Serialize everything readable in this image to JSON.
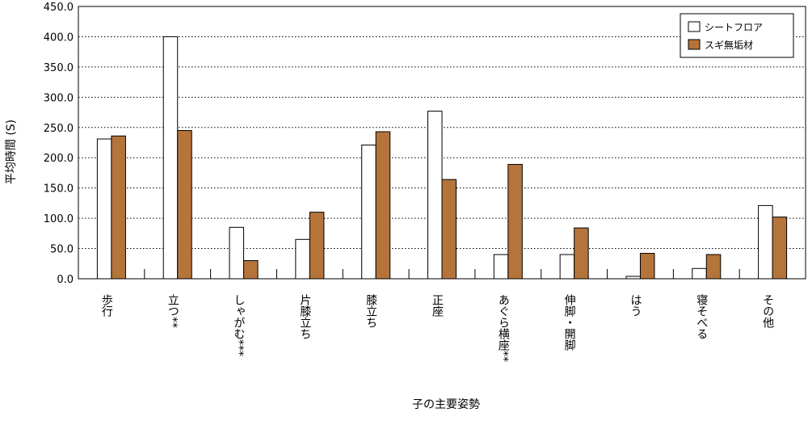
{
  "chart_data": {
    "type": "bar",
    "ylabel": "平均時間 (S)",
    "xlabel": "子の主要姿勢",
    "ylim": [
      0,
      450
    ],
    "yticks": [
      "0.0",
      "50.0",
      "100.0",
      "150.0",
      "200.0",
      "250.0",
      "300.0",
      "350.0",
      "400.0",
      "450.0"
    ],
    "grid": "horizontal-dotted",
    "legend_position": "top-right",
    "categories": [
      "歩行",
      "立つ**",
      "しゃがむ***",
      "片膝立ち",
      "膝立ち",
      "正座",
      "あぐら横座**",
      "伸脚・開脚",
      "はう",
      "寝そべる",
      "その他"
    ],
    "series": [
      {
        "name": "シートフロア",
        "color": "#ffffff",
        "values": [
          231,
          400,
          85,
          65,
          221,
          277,
          40,
          40,
          4,
          17,
          121
        ]
      },
      {
        "name": "スギ無垢材",
        "color": "#b5743a",
        "values": [
          236,
          245,
          30,
          110,
          243,
          164,
          189,
          84,
          42,
          40,
          102
        ]
      }
    ]
  }
}
